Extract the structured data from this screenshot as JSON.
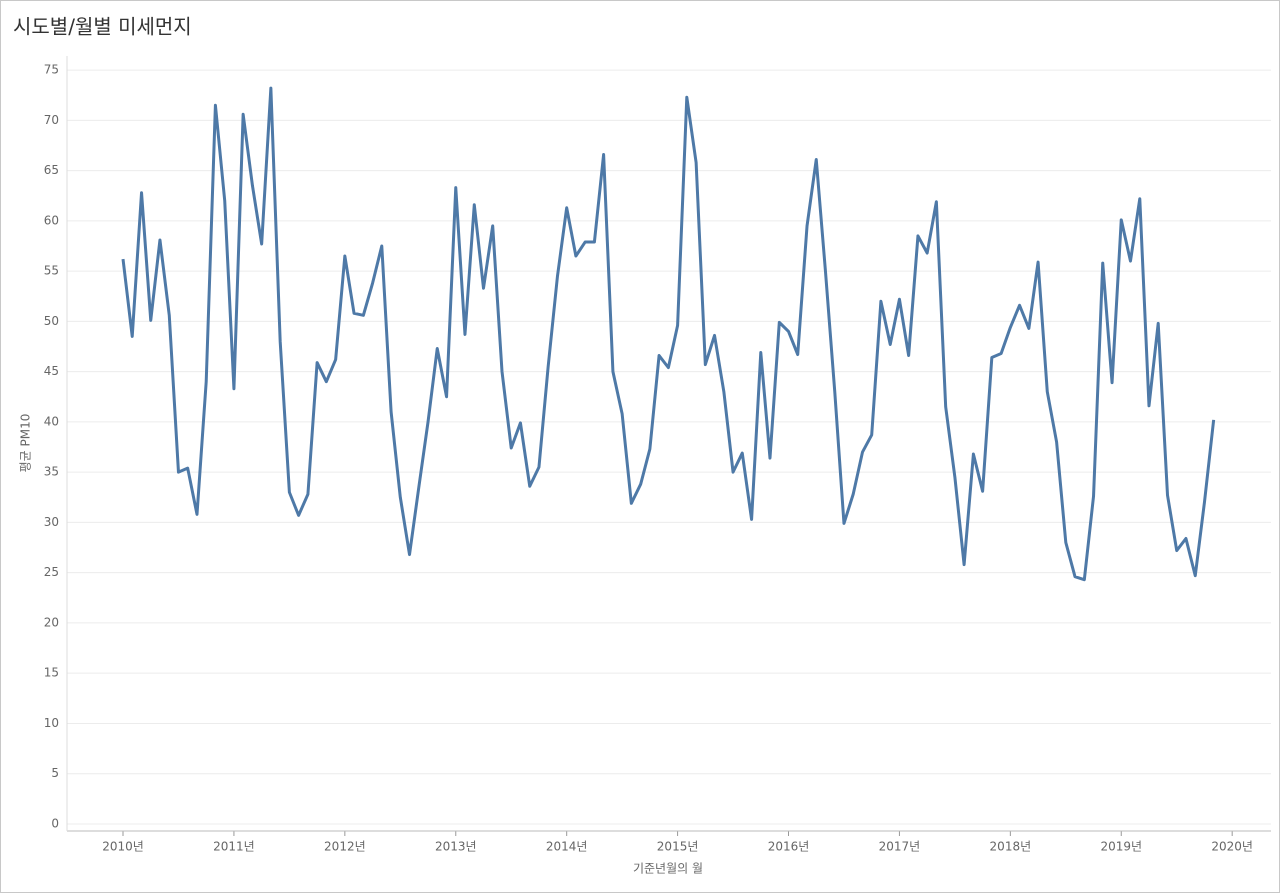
{
  "chart_data": {
    "type": "line",
    "title": "시도별/월별 미세먼지",
    "x_label": "기준년월의 월",
    "y_label": "평균 PM10",
    "x": [
      2010,
      2010.083,
      2010.167,
      2010.25,
      2010.333,
      2010.417,
      2010.5,
      2010.583,
      2010.667,
      2010.75,
      2010.833,
      2010.917,
      2011,
      2011.083,
      2011.167,
      2011.25,
      2011.333,
      2011.417,
      2011.5,
      2011.583,
      2011.667,
      2011.75,
      2011.833,
      2011.917,
      2012,
      2012.083,
      2012.167,
      2012.25,
      2012.333,
      2012.417,
      2012.5,
      2012.583,
      2012.667,
      2012.75,
      2012.833,
      2012.917,
      2013,
      2013.083,
      2013.167,
      2013.25,
      2013.333,
      2013.417,
      2013.5,
      2013.583,
      2013.667,
      2013.75,
      2013.833,
      2013.917,
      2014,
      2014.083,
      2014.167,
      2014.25,
      2014.333,
      2014.417,
      2014.5,
      2014.583,
      2014.667,
      2014.75,
      2014.833,
      2014.917,
      2015,
      2015.083,
      2015.167,
      2015.25,
      2015.333,
      2015.417,
      2015.5,
      2015.583,
      2015.667,
      2015.75,
      2015.833,
      2015.917,
      2016,
      2016.083,
      2016.167,
      2016.25,
      2016.333,
      2016.417,
      2016.5,
      2016.583,
      2016.667,
      2016.75,
      2016.833,
      2016.917,
      2017,
      2017.083,
      2017.167,
      2017.25,
      2017.333,
      2017.417,
      2017.5,
      2017.583,
      2017.667,
      2017.75,
      2017.833,
      2017.917,
      2018,
      2018.083,
      2018.167,
      2018.25,
      2018.333,
      2018.417,
      2018.5,
      2018.583,
      2018.667,
      2018.75,
      2018.833,
      2018.917,
      2019,
      2019.083,
      2019.167,
      2019.25,
      2019.333,
      2019.417,
      2019.5,
      2019.583,
      2019.667,
      2019.75,
      2019.833
    ],
    "series": [
      {
        "name": "평균 PM10",
        "color": "#4e79a7",
        "values": [
          56.2,
          48.5,
          62.8,
          50.1,
          58.1,
          50.6,
          35.0,
          35.4,
          30.8,
          44.0,
          71.5,
          62.0,
          43.3,
          70.6,
          63.5,
          57.7,
          73.2,
          48.0,
          33.0,
          30.7,
          32.8,
          45.9,
          44.0,
          46.2,
          56.5,
          50.8,
          50.6,
          53.8,
          57.5,
          41.0,
          32.5,
          26.8,
          33.5,
          40.0,
          47.3,
          42.5,
          63.3,
          48.7,
          61.6,
          53.3,
          59.5,
          45.0,
          37.4,
          39.9,
          33.6,
          35.5,
          45.5,
          54.5,
          61.3,
          56.5,
          57.9,
          57.9,
          66.6,
          45.0,
          40.8,
          31.9,
          33.8,
          37.3,
          46.6,
          45.4,
          49.6,
          72.3,
          65.8,
          45.7,
          48.6,
          43.0,
          35.0,
          36.9,
          30.3,
          46.9,
          36.4,
          49.9,
          49.0,
          46.7,
          59.5,
          66.1,
          55.0,
          43.0,
          29.9,
          32.8,
          37.0,
          38.7,
          52.0,
          47.7,
          52.2,
          46.6,
          58.5,
          56.8,
          61.9,
          41.5,
          34.5,
          25.8,
          36.8,
          33.1,
          46.4,
          46.8,
          49.4,
          51.6,
          49.3,
          55.9,
          43.0,
          38.0,
          28.0,
          24.6,
          24.3,
          32.6,
          55.8,
          43.9,
          60.1,
          56.0,
          62.2,
          41.6,
          49.8,
          32.7,
          27.2,
          28.4,
          24.7,
          32.0,
          40.2
        ]
      }
    ],
    "xlim": [
      2009.495,
      2020.35
    ],
    "xticks": [
      {
        "value": 2010,
        "label": "2010년"
      },
      {
        "value": 2011,
        "label": "2011년"
      },
      {
        "value": 2012,
        "label": "2012년"
      },
      {
        "value": 2013,
        "label": "2013년"
      },
      {
        "value": 2014,
        "label": "2014년"
      },
      {
        "value": 2015,
        "label": "2015년"
      },
      {
        "value": 2016,
        "label": "2016년"
      },
      {
        "value": 2017,
        "label": "2017년"
      },
      {
        "value": 2018,
        "label": "2018년"
      },
      {
        "value": 2019,
        "label": "2019년"
      },
      {
        "value": 2020,
        "label": "2020년"
      }
    ],
    "ylim": [
      -0.7,
      76.4
    ],
    "yticks": [
      0,
      5,
      10,
      15,
      20,
      25,
      30,
      35,
      40,
      45,
      50,
      55,
      60,
      65,
      70,
      75
    ],
    "grid": true
  }
}
